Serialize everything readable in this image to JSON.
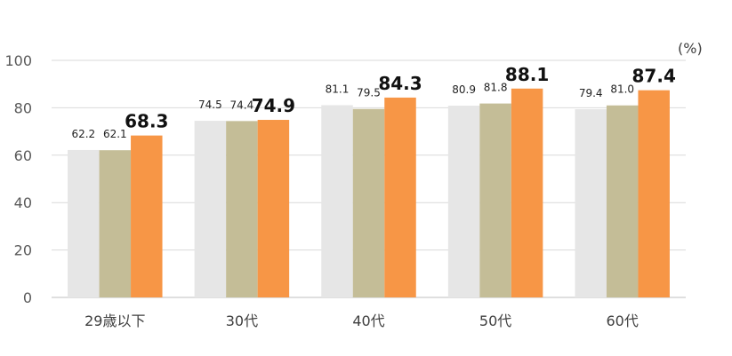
{
  "chart_data": {
    "type": "bar",
    "categories": [
      "29歳以下",
      "30代",
      "40代",
      "50代",
      "60代"
    ],
    "series": [
      {
        "values": [
          62.2,
          74.5,
          81.1,
          80.9,
          79.4
        ],
        "color": "#e6e6e6"
      },
      {
        "values": [
          62.1,
          74.4,
          79.5,
          81.8,
          81.0
        ],
        "color": "#c4bd97"
      },
      {
        "values": [
          68.3,
          74.9,
          84.3,
          88.1,
          87.4
        ],
        "color": "#f79646",
        "emphasized": true
      }
    ],
    "unit_label": "(%)",
    "ylim": [
      0,
      100
    ],
    "yticks": [
      0,
      20,
      40,
      60,
      80,
      100
    ],
    "grid": true,
    "data_labels": true
  }
}
